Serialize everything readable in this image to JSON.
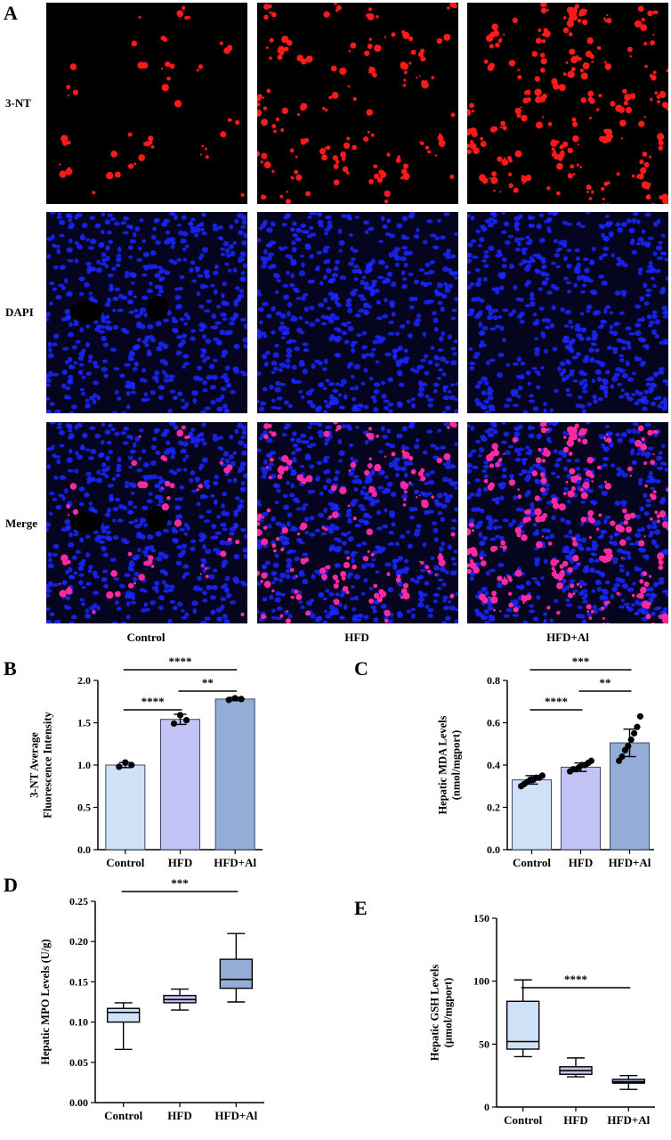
{
  "figure": {
    "panel_labels": [
      "A",
      "B",
      "C",
      "D",
      "E"
    ],
    "rows": [
      "3-NT",
      "DAPI",
      "Merge"
    ],
    "columns": [
      "Control",
      "HFD",
      "HFD+Al"
    ]
  },
  "colors": {
    "control": "#cfe1f7",
    "hfd": "#c4c3f5",
    "hfdal": "#93add7",
    "stain_red": "#ff1a1a",
    "stain_blue": "#1a26ff",
    "merge_pink": "#ff2aa0"
  },
  "chart_data": [
    {
      "panel": "B",
      "type": "bar",
      "categories": [
        "Control",
        "HFD",
        "HFD+Al"
      ],
      "values": [
        1.0,
        1.54,
        1.78
      ],
      "errors": [
        0.03,
        0.06,
        0.02
      ],
      "points": [
        [
          0.98,
          1.03,
          1.0
        ],
        [
          1.49,
          1.59,
          1.53
        ],
        [
          1.77,
          1.79,
          1.78
        ]
      ],
      "ylabel_line1": "3-NT Average",
      "ylabel_line2": "Fluorescence Intensity",
      "ylim": [
        0,
        2.0
      ],
      "yticks": [
        "0.0",
        "0.5",
        "1.0",
        "1.5",
        "2.0"
      ],
      "tick_values": [
        0,
        0.5,
        1.0,
        1.5,
        2.0
      ],
      "significance": [
        {
          "from": 0,
          "to": 1,
          "label": "****"
        },
        {
          "from": 1,
          "to": 2,
          "label": "**"
        },
        {
          "from": 0,
          "to": 2,
          "label": "****"
        }
      ]
    },
    {
      "panel": "C",
      "type": "bar",
      "categories": [
        "Control",
        "HFD",
        "HFD+Al"
      ],
      "values": [
        0.33,
        0.39,
        0.505
      ],
      "errors": [
        0.02,
        0.02,
        0.065
      ],
      "points": [
        [
          0.3,
          0.31,
          0.32,
          0.33,
          0.33,
          0.34,
          0.34,
          0.35
        ],
        [
          0.37,
          0.38,
          0.38,
          0.39,
          0.4,
          0.4,
          0.41,
          0.42
        ],
        [
          0.42,
          0.44,
          0.47,
          0.49,
          0.52,
          0.55,
          0.58,
          0.63
        ]
      ],
      "ylabel_line1": "Hepatic MDA Levels",
      "ylabel_line2": "(nmol/mgport)",
      "ylim": [
        0,
        0.8
      ],
      "yticks": [
        "0.0",
        "0.2",
        "0.4",
        "0.6",
        "0.8"
      ],
      "tick_values": [
        0,
        0.2,
        0.4,
        0.6,
        0.8
      ],
      "significance": [
        {
          "from": 0,
          "to": 1,
          "label": "****"
        },
        {
          "from": 1,
          "to": 2,
          "label": "**"
        },
        {
          "from": 0,
          "to": 2,
          "label": "***"
        }
      ]
    },
    {
      "panel": "D",
      "type": "box",
      "categories": [
        "Control",
        "HFD",
        "HFD+Al"
      ],
      "boxes": [
        {
          "min": 0.066,
          "q1": 0.1,
          "median": 0.112,
          "q3": 0.117,
          "max": 0.124
        },
        {
          "min": 0.115,
          "q1": 0.124,
          "median": 0.128,
          "q3": 0.133,
          "max": 0.141
        },
        {
          "min": 0.125,
          "q1": 0.142,
          "median": 0.153,
          "q3": 0.178,
          "max": 0.21
        }
      ],
      "ylabel": "Hepatic MPO Levels (U/g)",
      "ylim": [
        0,
        0.25
      ],
      "yticks": [
        "0.00",
        "0.05",
        "0.10",
        "0.15",
        "0.20",
        "0.25"
      ],
      "tick_values": [
        0,
        0.05,
        0.1,
        0.15,
        0.2,
        0.25
      ],
      "significance": [
        {
          "from": 0,
          "to": 2,
          "label": "***"
        }
      ]
    },
    {
      "panel": "E",
      "type": "box",
      "categories": [
        "Control",
        "HFD",
        "HFD+Al"
      ],
      "boxes": [
        {
          "min": 40,
          "q1": 46,
          "median": 52,
          "q3": 84,
          "max": 101
        },
        {
          "min": 24,
          "q1": 26,
          "median": 29,
          "q3": 32,
          "max": 39
        },
        {
          "min": 14,
          "q1": 19,
          "median": 20,
          "q3": 22,
          "max": 25
        }
      ],
      "ylabel_line1": "Hepatic GSH Levels",
      "ylabel_line2": "(μmol/mgport)",
      "ylim": [
        0,
        150
      ],
      "yticks": [
        "0",
        "50",
        "100",
        "150"
      ],
      "tick_values": [
        0,
        50,
        100,
        150
      ],
      "significance": [
        {
          "from": 0,
          "to": 2,
          "label": "****"
        }
      ]
    }
  ]
}
